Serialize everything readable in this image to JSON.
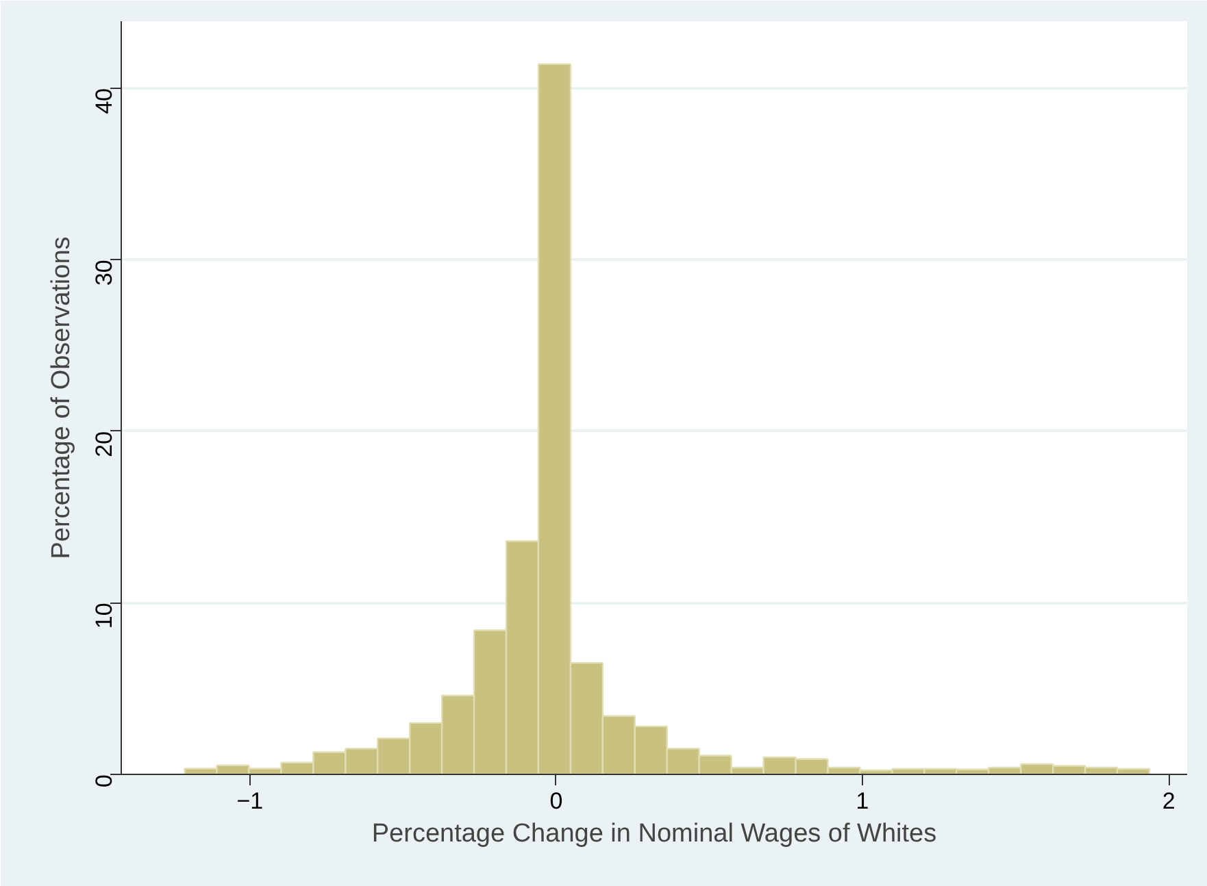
{
  "chart_data": {
    "type": "histogram",
    "xlabel": "Percentage Change in Nominal Wages of Whites",
    "ylabel": "Percentage of Observations",
    "bins": [
      -1.213,
      -1.108,
      -1.003,
      -0.898,
      -0.793,
      -0.688,
      -0.583,
      -0.478,
      -0.373,
      -0.268,
      -0.163,
      -0.058,
      0.047,
      0.152,
      0.257,
      0.362,
      0.467,
      0.572,
      0.677,
      0.782,
      0.887,
      0.992,
      1.097,
      1.202,
      1.307,
      1.412,
      1.517,
      1.622,
      1.727,
      1.832,
      1.937
    ],
    "values": [
      0.34,
      0.53,
      0.34,
      0.69,
      1.3,
      1.5,
      2.1,
      3.0,
      4.6,
      8.4,
      13.6,
      41.4,
      6.5,
      3.4,
      2.8,
      1.5,
      1.1,
      0.4,
      1.0,
      0.9,
      0.4,
      0.24,
      0.32,
      0.32,
      0.29,
      0.4,
      0.6,
      0.5,
      0.4,
      0.32
    ],
    "color": "#c9c17f",
    "xlim": [
      -1.42,
      2.06
    ],
    "ylim": [
      0,
      43.9
    ],
    "xticks": [
      -1,
      0,
      1,
      2
    ],
    "yticks": [
      0,
      10,
      20,
      30,
      40
    ],
    "grid": "y"
  }
}
